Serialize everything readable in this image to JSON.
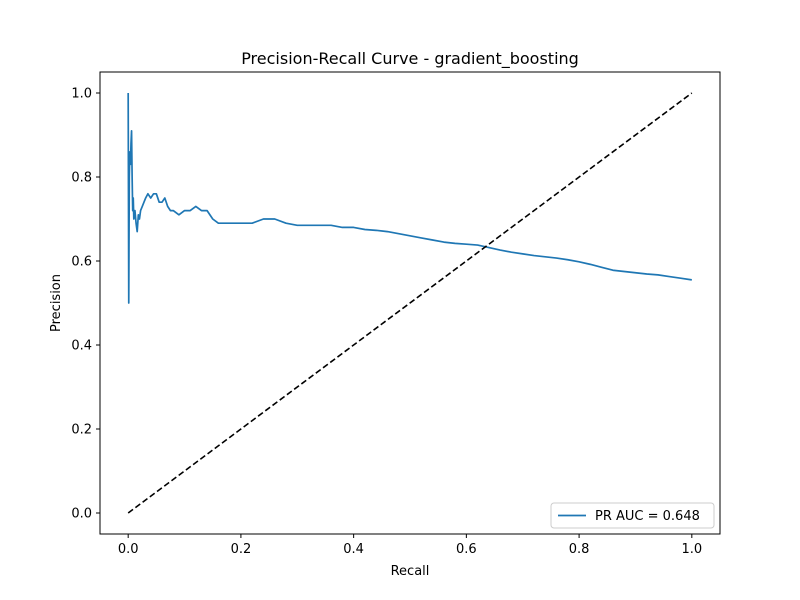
{
  "chart_data": {
    "type": "line",
    "title": "Precision-Recall Curve - gradient_boosting",
    "xlabel": "Recall",
    "ylabel": "Precision",
    "xlim": [
      -0.05,
      1.05
    ],
    "ylim": [
      -0.05,
      1.05
    ],
    "xticks": [
      0.0,
      0.2,
      0.4,
      0.6,
      0.8,
      1.0
    ],
    "yticks": [
      0.0,
      0.2,
      0.4,
      0.6,
      0.8,
      1.0
    ],
    "xtick_labels": [
      "0.0",
      "0.2",
      "0.4",
      "0.6",
      "0.8",
      "1.0"
    ],
    "ytick_labels": [
      "0.0",
      "0.2",
      "0.4",
      "0.6",
      "0.8",
      "1.0"
    ],
    "grid": false,
    "legend_position": "lower-right",
    "series": [
      {
        "name": "PR AUC = 0.648",
        "color": "#1f77b4",
        "style": "solid",
        "x": [
          0.0,
          0.001,
          0.002,
          0.003,
          0.004,
          0.005,
          0.006,
          0.007,
          0.008,
          0.009,
          0.01,
          0.012,
          0.014,
          0.016,
          0.018,
          0.02,
          0.022,
          0.025,
          0.028,
          0.031,
          0.035,
          0.04,
          0.045,
          0.05,
          0.055,
          0.06,
          0.065,
          0.07,
          0.075,
          0.08,
          0.09,
          0.1,
          0.11,
          0.12,
          0.13,
          0.14,
          0.15,
          0.16,
          0.18,
          0.2,
          0.22,
          0.24,
          0.26,
          0.28,
          0.3,
          0.32,
          0.34,
          0.36,
          0.38,
          0.4,
          0.42,
          0.44,
          0.46,
          0.48,
          0.5,
          0.52,
          0.54,
          0.56,
          0.58,
          0.6,
          0.62,
          0.64,
          0.66,
          0.68,
          0.7,
          0.72,
          0.74,
          0.76,
          0.78,
          0.8,
          0.82,
          0.84,
          0.86,
          0.88,
          0.9,
          0.92,
          0.94,
          0.96,
          0.98,
          1.0
        ],
        "y": [
          1.0,
          0.5,
          0.8,
          0.86,
          0.83,
          0.88,
          0.91,
          0.8,
          0.72,
          0.75,
          0.7,
          0.72,
          0.69,
          0.67,
          0.71,
          0.7,
          0.72,
          0.73,
          0.74,
          0.75,
          0.76,
          0.75,
          0.76,
          0.76,
          0.74,
          0.74,
          0.75,
          0.73,
          0.72,
          0.72,
          0.71,
          0.72,
          0.72,
          0.73,
          0.72,
          0.72,
          0.7,
          0.69,
          0.69,
          0.69,
          0.69,
          0.7,
          0.7,
          0.69,
          0.685,
          0.685,
          0.685,
          0.685,
          0.68,
          0.68,
          0.675,
          0.673,
          0.67,
          0.665,
          0.66,
          0.655,
          0.65,
          0.645,
          0.642,
          0.64,
          0.638,
          0.632,
          0.626,
          0.621,
          0.617,
          0.613,
          0.61,
          0.607,
          0.603,
          0.598,
          0.592,
          0.585,
          0.578,
          0.575,
          0.572,
          0.569,
          0.567,
          0.563,
          0.559,
          0.555
        ]
      },
      {
        "name": "",
        "color": "#000000",
        "style": "dashed",
        "x": [
          0.0,
          1.0
        ],
        "y": [
          0.0,
          1.0
        ]
      }
    ]
  }
}
